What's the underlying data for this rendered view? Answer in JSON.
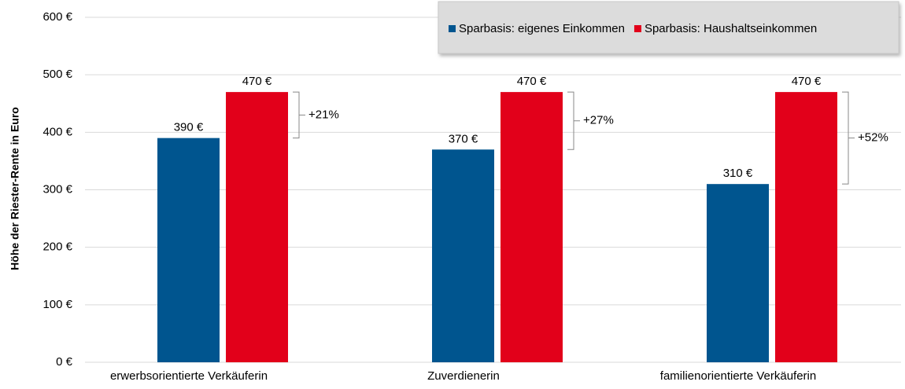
{
  "chart_data": {
    "type": "bar",
    "y_axis_label": "Höhe der Riester-Rente in Euro",
    "categories": [
      "erwerbsorientierte Verkäuferin",
      "Zuverdienerin",
      "familienorientierte Verkäuferin"
    ],
    "series": [
      {
        "name": "Sparbasis: eigenes Einkommen",
        "color": "#00558f",
        "values": [
          390,
          370,
          310
        ],
        "value_labels": [
          "390 €",
          "370 €",
          "310 €"
        ]
      },
      {
        "name": "Sparbasis: Haushaltseinkommen",
        "color": "#e2001a",
        "values": [
          470,
          470,
          470
        ],
        "value_labels": [
          "470 €",
          "470 €",
          "470 €"
        ]
      }
    ],
    "annotations": [
      "+21%",
      "+27%",
      "+52%"
    ],
    "ylim": [
      0,
      600
    ],
    "yticks": [
      {
        "value": 0,
        "label": "0 €"
      },
      {
        "value": 100,
        "label": "100 €"
      },
      {
        "value": 200,
        "label": "200 €"
      },
      {
        "value": 300,
        "label": "300 €"
      },
      {
        "value": 400,
        "label": "400 €"
      },
      {
        "value": 500,
        "label": "500 €"
      },
      {
        "value": 600,
        "label": "600 €"
      }
    ],
    "grid": true,
    "legend": "top-right"
  }
}
